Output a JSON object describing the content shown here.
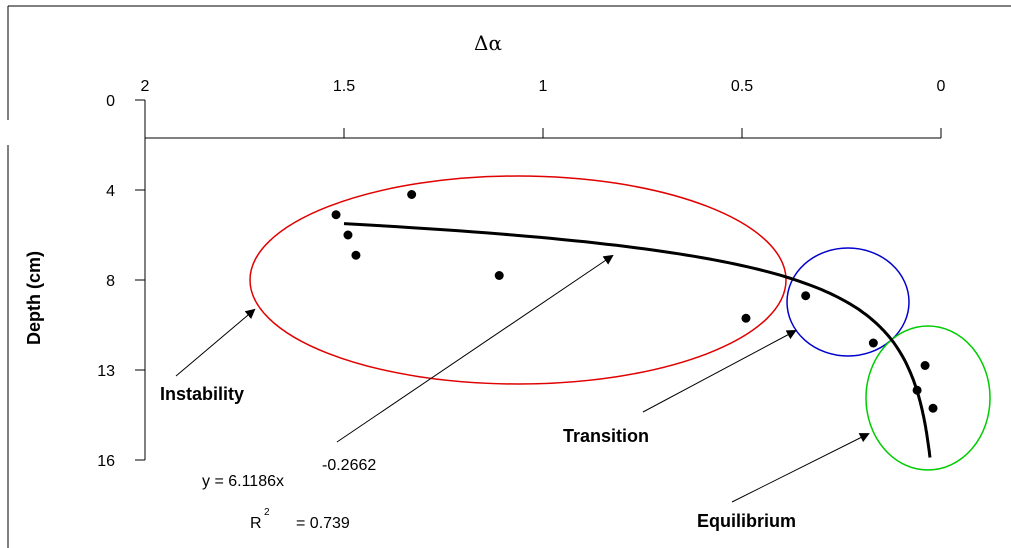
{
  "chart_data": {
    "type": "scatter",
    "title": "",
    "xlabel": "Δα",
    "ylabel": "Depth (cm)",
    "x_axis_position": "top",
    "x_reversed": true,
    "y_inverted": true,
    "xlim": [
      2,
      0
    ],
    "x_ticks": [
      "2",
      "1.5",
      "1",
      "0.5",
      "0"
    ],
    "y_tick_labels": [
      "0",
      "4",
      "8",
      "13",
      "16"
    ],
    "points": [
      {
        "x": 1.52,
        "y": 5.1
      },
      {
        "x": 1.33,
        "y": 4.2
      },
      {
        "x": 1.49,
        "y": 6.0
      },
      {
        "x": 1.47,
        "y": 6.9
      },
      {
        "x": 1.11,
        "y": 7.8
      },
      {
        "x": 0.49,
        "y": 9.7
      },
      {
        "x": 0.34,
        "y": 8.7
      },
      {
        "x": 0.17,
        "y": 10.8
      },
      {
        "x": 0.04,
        "y": 11.8
      },
      {
        "x": 0.06,
        "y": 12.9
      },
      {
        "x": 0.02,
        "y": 13.7
      }
    ],
    "trendline": {
      "equation_prefix": "y = 6.1186x",
      "equation_exponent": "-0.2662",
      "r2_prefix": "R",
      "r2_sup": "2",
      "r2_value": "= 0.739",
      "coefficient": 6.1186,
      "exponent": -0.2662
    },
    "annotations": [
      {
        "label": "Instability",
        "color": "#e00000"
      },
      {
        "label": "Transition",
        "color": "#0000cc"
      },
      {
        "label": "Equilibrium",
        "color": "#00cc00"
      }
    ],
    "grid": false,
    "legend": "none"
  }
}
